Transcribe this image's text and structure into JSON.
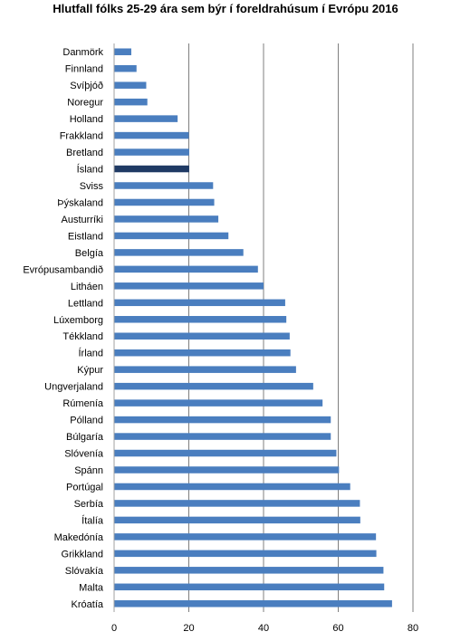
{
  "chart_data": {
    "type": "bar",
    "orientation": "horizontal",
    "title": "Hlutfall fólks 25-29 ára sem býr í foreldrahúsum í Evrópu 2016",
    "xlabel": "",
    "ylabel": "",
    "xlim": [
      0,
      80
    ],
    "xticks": [
      0,
      20,
      40,
      60,
      80
    ],
    "grid": true,
    "legend": "none",
    "colors": {
      "default": "#4a7ebf",
      "highlight": "#1f3a64"
    },
    "highlight": "Ísland",
    "categories": [
      "Danmörk",
      "Finnland",
      "Svíþjóð",
      "Noregur",
      "Holland",
      "Frakkland",
      "Bretland",
      "Ísland",
      "Sviss",
      "Þýskaland",
      "Austurríki",
      "Eistland",
      "Belgía",
      "Evrópusambandið",
      "Litháen",
      "Lettland",
      "Lúxemborg",
      "Tékkland",
      "Írland",
      "Kýpur",
      "Ungverjaland",
      "Rúmenía",
      "Pólland",
      "Búlgaría",
      "Slóvenía",
      "Spánn",
      "Portúgal",
      "Serbía",
      "Ítalía",
      "Makedónía",
      "Grikkland",
      "Slóvakía",
      "Malta",
      "Króatía"
    ],
    "values": [
      4.6,
      6.0,
      8.6,
      8.9,
      17.0,
      20.0,
      20.1,
      20.1,
      26.5,
      26.8,
      27.9,
      30.6,
      34.6,
      38.5,
      40.0,
      45.8,
      46.1,
      47.0,
      47.2,
      48.7,
      53.3,
      55.8,
      58.0,
      58.0,
      59.5,
      60.2,
      63.2,
      65.8,
      65.9,
      70.1,
      70.2,
      72.1,
      72.3,
      74.4
    ]
  }
}
